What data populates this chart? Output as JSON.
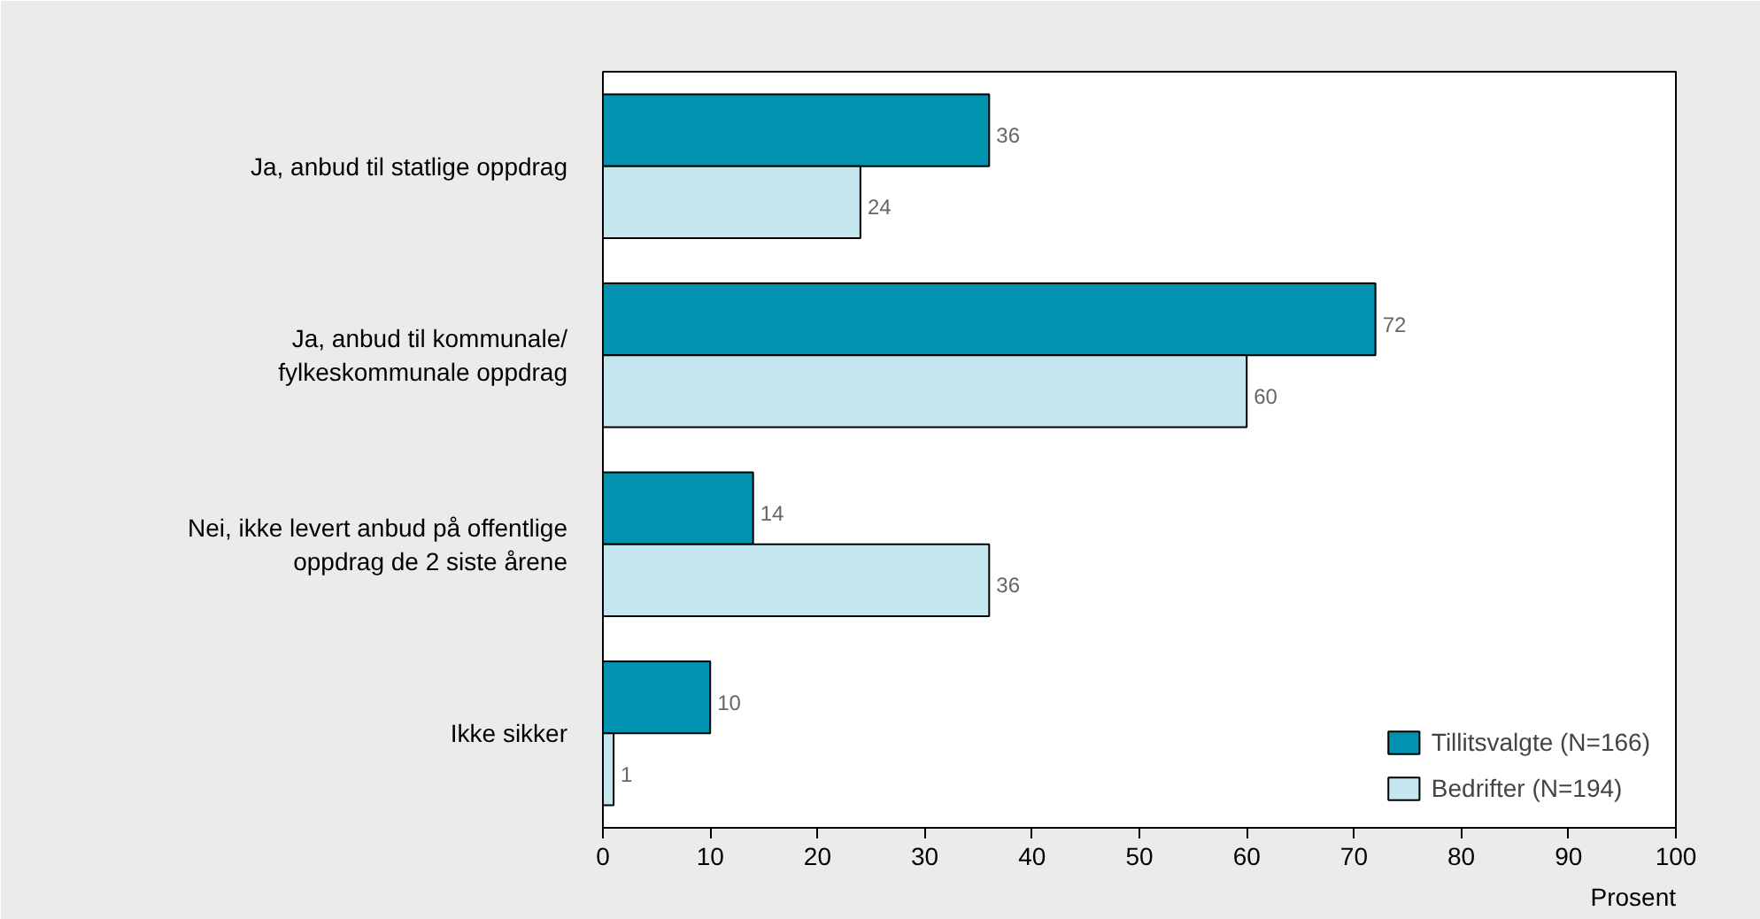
{
  "chart_data": {
    "type": "bar",
    "orientation": "horizontal",
    "xlabel": "Prosent",
    "categories": [
      "Ja, anbud til statlige oppdrag",
      "Ja, anbud til kommunale/\nfylkeskommunale oppdrag",
      "Nei, ikke levert anbud på offentlige\noppdrag de 2 siste årene",
      "Ikke sikker"
    ],
    "series": [
      {
        "name": "Tillitsvalgte (N=166)",
        "color": "#0092ae",
        "values": [
          36,
          72,
          14,
          10
        ]
      },
      {
        "name": "Bedrifter (N=194)",
        "color": "#c4e6ef",
        "values": [
          24,
          60,
          36,
          1
        ]
      }
    ],
    "xlim": [
      0,
      100
    ],
    "xticks": [
      0,
      10,
      20,
      30,
      40,
      50,
      60,
      70,
      80,
      90,
      100
    ],
    "data_labels": true,
    "grid": false,
    "legend": "bottom right"
  }
}
